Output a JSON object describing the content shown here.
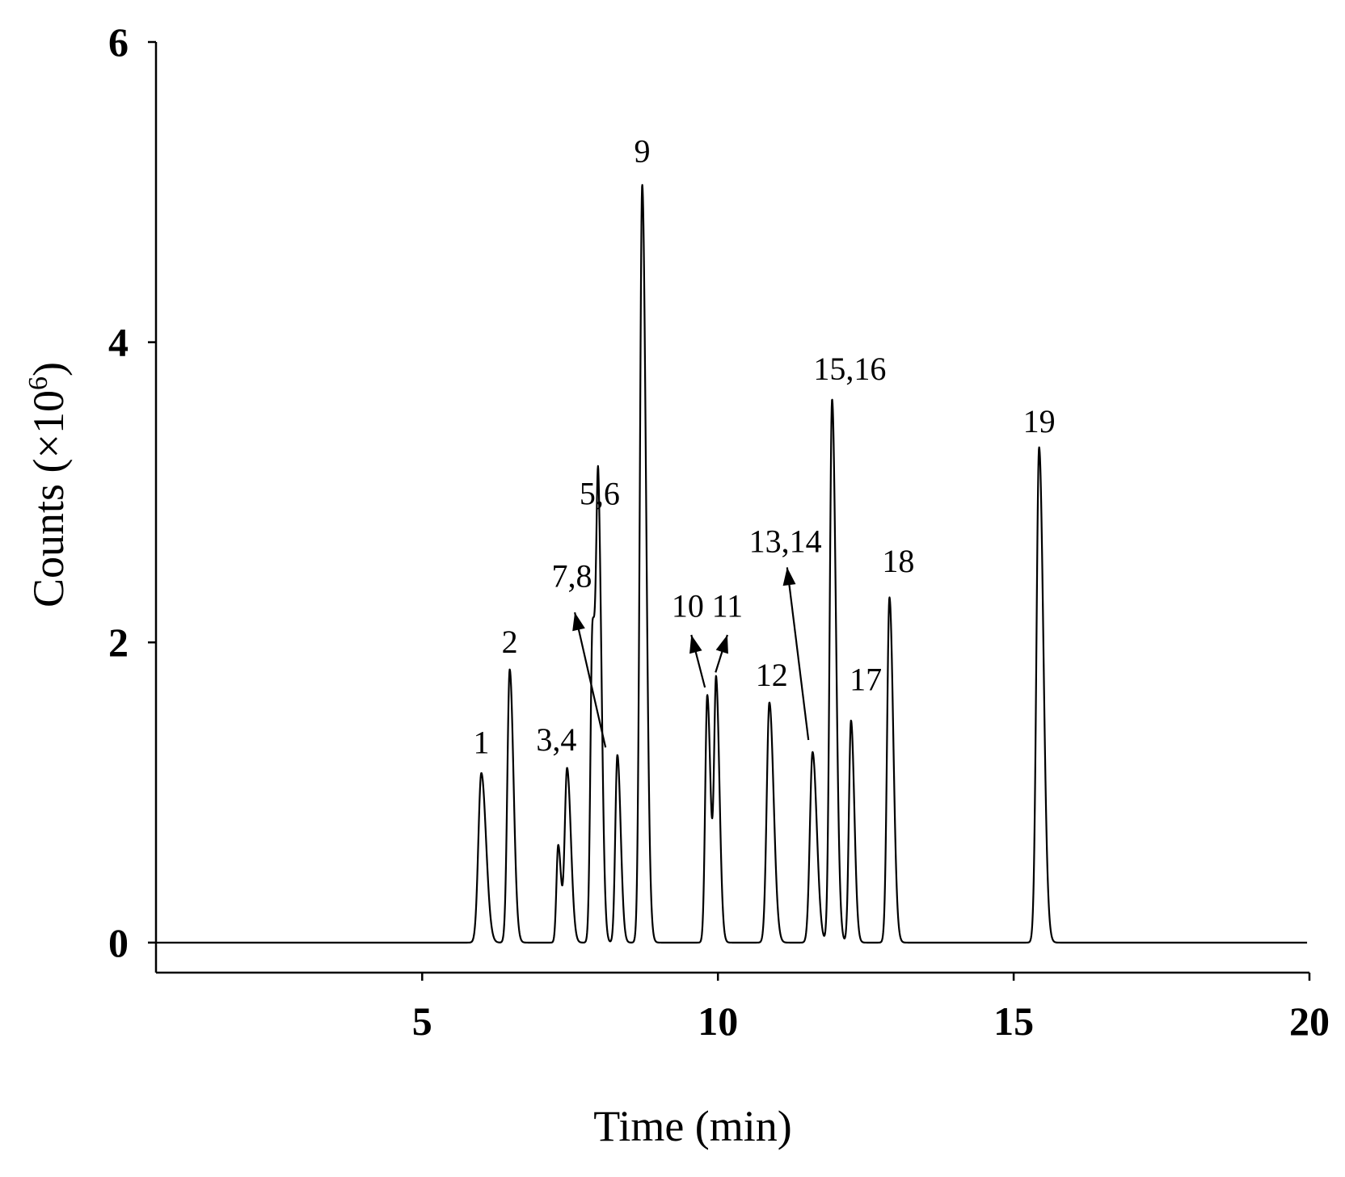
{
  "chart_data": {
    "type": "line",
    "title": "",
    "xlabel": "Time (min)",
    "ylabel": "Counts (×10⁶)",
    "ylabel_parts": {
      "main": "Counts (×10",
      "sup": "6",
      "close": ")"
    },
    "xlim": [
      0.5,
      20
    ],
    "ylim": [
      -0.2,
      6
    ],
    "xticks": [
      5,
      10,
      15,
      20
    ],
    "xtick_labels": [
      "5",
      "10",
      "15",
      "20"
    ],
    "yticks": [
      0,
      2,
      4,
      6
    ],
    "ytick_labels": [
      "0",
      "2",
      "4",
      "6"
    ],
    "grid": false,
    "legend": "none",
    "baseline": 0,
    "peaks": [
      {
        "t": 6.0,
        "height": 1.13,
        "width": 0.05
      },
      {
        "t": 6.48,
        "height": 1.82,
        "width": 0.04
      },
      {
        "t": 7.3,
        "height": 0.65,
        "width": 0.03
      },
      {
        "t": 7.45,
        "height": 1.16,
        "width": 0.04
      },
      {
        "t": 7.88,
        "height": 2.1,
        "width": 0.035
      },
      {
        "t": 7.98,
        "height": 2.7,
        "width": 0.035
      },
      {
        "t": 8.3,
        "height": 1.25,
        "width": 0.035
      },
      {
        "t": 8.72,
        "height": 5.05,
        "width": 0.04
      },
      {
        "t": 9.82,
        "height": 1.65,
        "width": 0.035
      },
      {
        "t": 9.97,
        "height": 1.73,
        "width": 0.035
      },
      {
        "t": 10.87,
        "height": 1.6,
        "width": 0.045
      },
      {
        "t": 11.6,
        "height": 1.27,
        "width": 0.045
      },
      {
        "t": 11.93,
        "height": 3.62,
        "width": 0.04
      },
      {
        "t": 12.25,
        "height": 1.48,
        "width": 0.035
      },
      {
        "t": 12.9,
        "height": 2.3,
        "width": 0.04
      },
      {
        "t": 15.43,
        "height": 3.3,
        "width": 0.045
      }
    ],
    "annotations": [
      {
        "text": "1",
        "x": 6.0,
        "y": 1.26
      },
      {
        "text": "2",
        "x": 6.48,
        "y": 1.93
      },
      {
        "text": "3,4",
        "x": 7.27,
        "y": 1.28
      },
      {
        "text": "5,6",
        "x": 8.0,
        "y": 2.92
      },
      {
        "text": "7,8",
        "x": 7.53,
        "y": 2.37
      },
      {
        "text": "9",
        "x": 8.72,
        "y": 5.2
      },
      {
        "text": "10",
        "x": 9.49,
        "y": 2.17
      },
      {
        "text": "11",
        "x": 10.16,
        "y": 2.17
      },
      {
        "text": "12",
        "x": 10.91,
        "y": 1.71
      },
      {
        "text": "13,14",
        "x": 11.14,
        "y": 2.6
      },
      {
        "text": "15,16",
        "x": 12.23,
        "y": 3.75
      },
      {
        "text": "17",
        "x": 12.5,
        "y": 1.68
      },
      {
        "text": "18",
        "x": 13.05,
        "y": 2.47
      },
      {
        "text": "19",
        "x": 15.43,
        "y": 3.4
      }
    ],
    "arrows": [
      {
        "from": [
          8.1,
          1.3
        ],
        "to": [
          7.58,
          2.2
        ]
      },
      {
        "from": [
          9.78,
          1.7
        ],
        "to": [
          9.55,
          2.05
        ]
      },
      {
        "from": [
          9.96,
          1.8
        ],
        "to": [
          10.16,
          2.05
        ]
      },
      {
        "from": [
          11.53,
          1.35
        ],
        "to": [
          11.17,
          2.5
        ]
      }
    ]
  }
}
